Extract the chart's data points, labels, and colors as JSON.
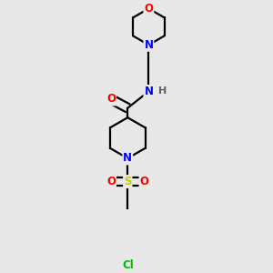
{
  "background_color": "#e8e8e8",
  "atom_colors": {
    "C": "#000000",
    "N": "#0000ff",
    "O": "#ff0000",
    "S": "#cccc00",
    "Cl": "#00bb00",
    "H": "#606060"
  },
  "figsize": [
    3.0,
    3.0
  ],
  "dpi": 100,
  "bond_lw": 1.6,
  "font_size": 8.5
}
